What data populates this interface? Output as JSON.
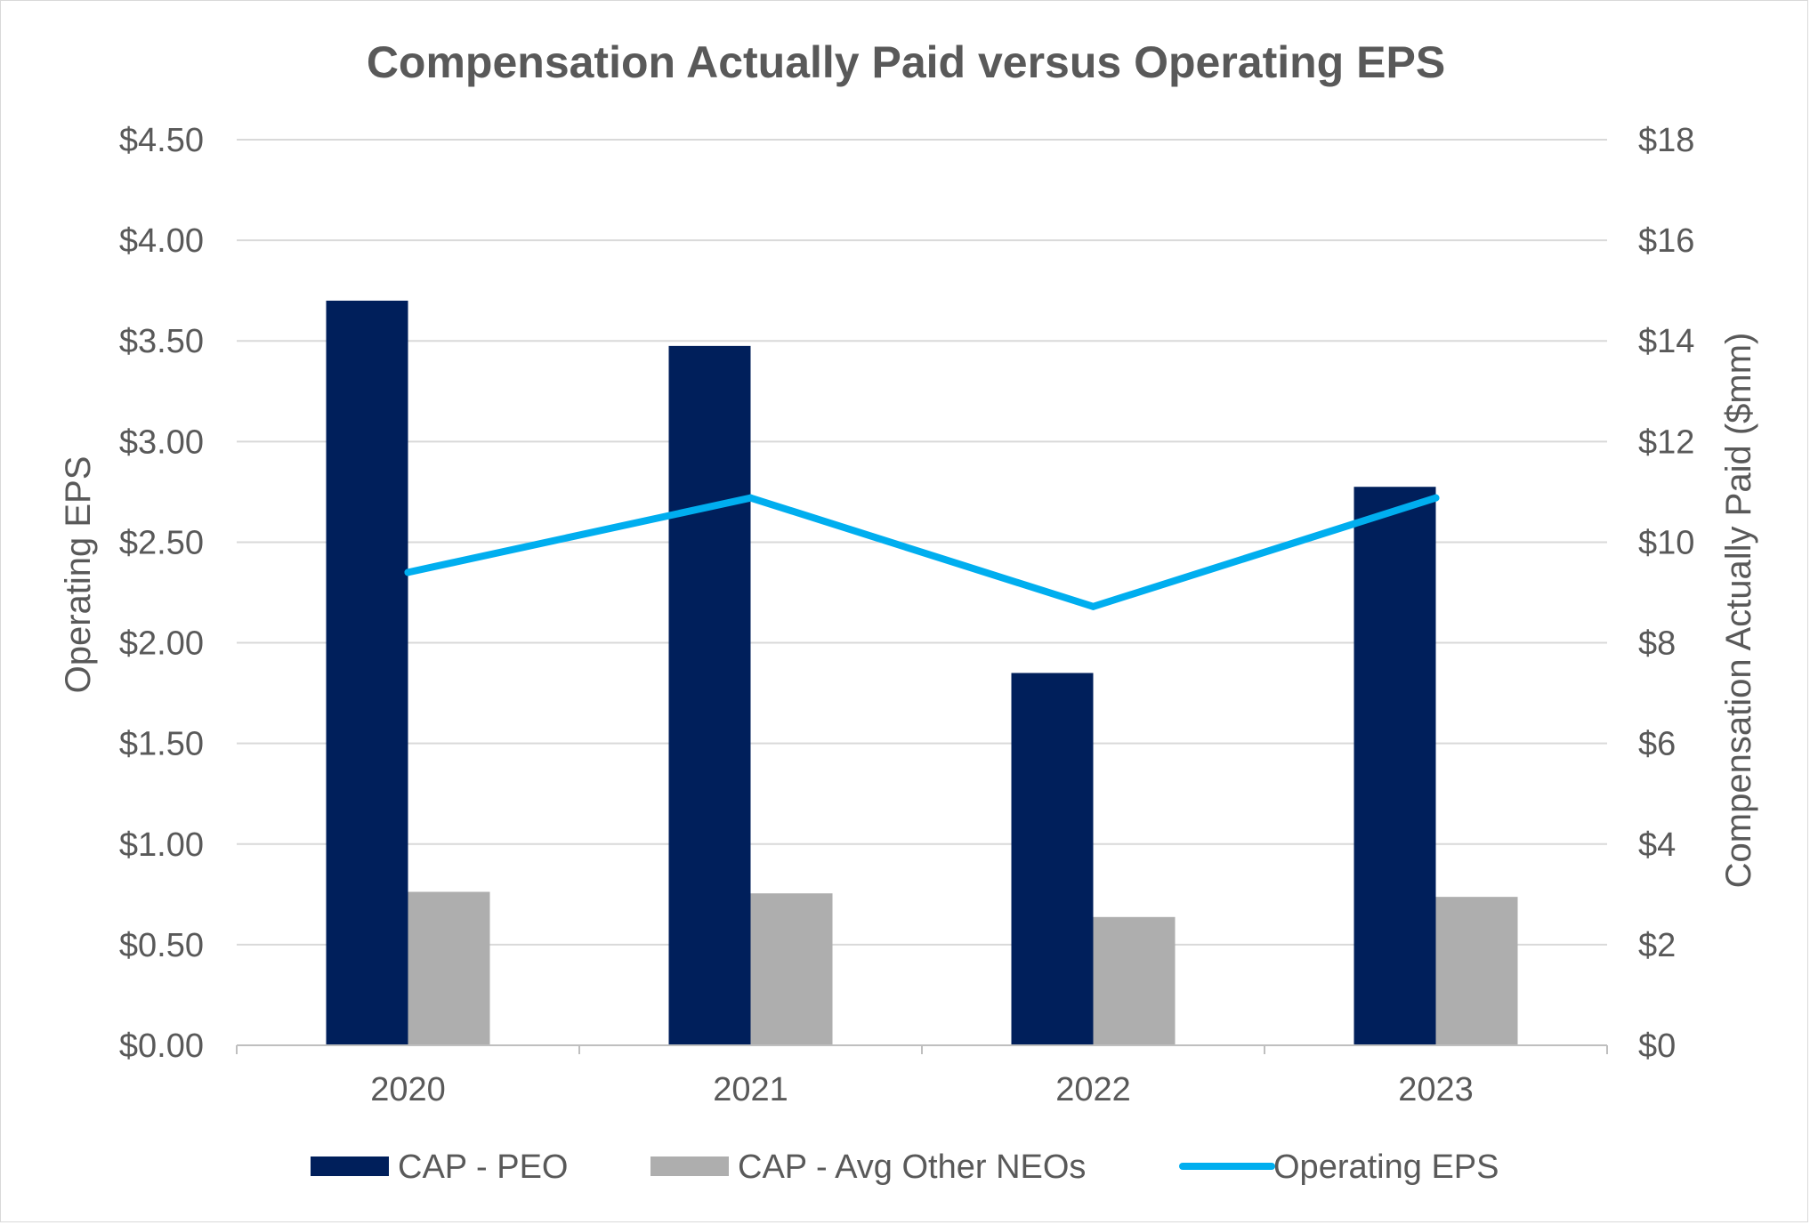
{
  "chart_data": {
    "type": "bar",
    "title": "Compensation Actually Paid versus Operating EPS",
    "categories": [
      "2020",
      "2021",
      "2022",
      "2023"
    ],
    "ylabel_left": "Operating EPS",
    "ylabel_right": "Compensation Actually Paid ($mm)",
    "ylim_left": [
      0,
      4.5
    ],
    "ylim_right": [
      0,
      18
    ],
    "left_ticks": [
      "$0.00",
      "$0.50",
      "$1.00",
      "$1.50",
      "$2.00",
      "$2.50",
      "$3.00",
      "$3.50",
      "$4.00",
      "$4.50"
    ],
    "right_ticks": [
      "$0",
      "$2",
      "$4",
      "$6",
      "$8",
      "$10",
      "$12",
      "$14",
      "$16",
      "$18"
    ],
    "grid": true,
    "legend_position": "bottom",
    "series": [
      {
        "name": "CAP - PEO",
        "type": "bar",
        "axis": "right",
        "color": "#001F5B",
        "values": [
          14.8,
          13.9,
          7.4,
          11.1
        ]
      },
      {
        "name": "CAP - Avg Other NEOs",
        "type": "bar",
        "axis": "right",
        "color": "#AEAEAE",
        "values": [
          3.05,
          3.02,
          2.55,
          2.95
        ]
      },
      {
        "name": "Operating EPS",
        "type": "line",
        "axis": "left",
        "color": "#00AEEF",
        "values": [
          2.35,
          2.72,
          2.18,
          2.72
        ]
      }
    ]
  }
}
